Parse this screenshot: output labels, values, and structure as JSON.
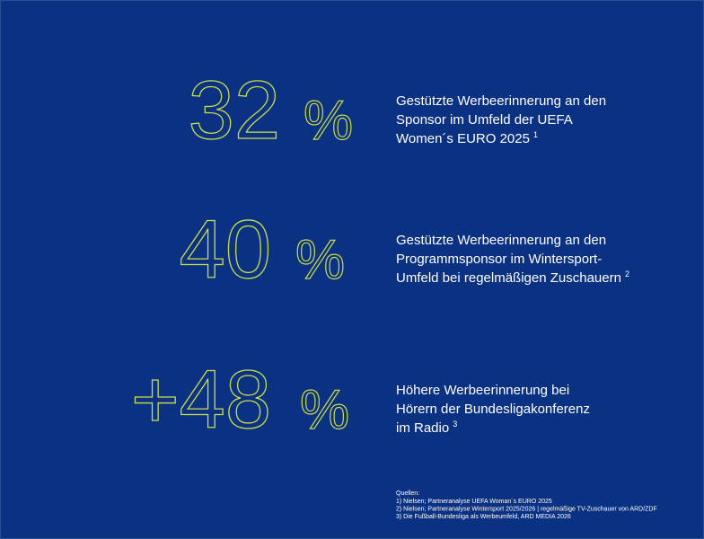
{
  "stats": [
    {
      "number": "32",
      "unit": "%",
      "lines": [
        "Gestützte Werbeerinnerung an den",
        "Sponsor im Umfeld der UEFA",
        "Women´s EURO 2025"
      ],
      "note": "1"
    },
    {
      "number": "40",
      "unit": "%",
      "lines": [
        "Gestützte Werbeerinnerung an den",
        "Programmsponsor im Wintersport-",
        "Umfeld bei regelmäßigen Zuschauern"
      ],
      "note": "2"
    },
    {
      "number": "+48",
      "unit": "%",
      "lines": [
        "Höhere Werbeerinnerung bei",
        "Hörern der Bundesligakonferenz",
        "im Radio"
      ],
      "note": "3"
    }
  ],
  "sources": {
    "title": "Quellen:",
    "items": [
      "1) Nielsen; Partneranalyse UEFA Woman´s EURO 2025",
      "2) Nielsen; Partneranalyse Wintersport 2025/2026 | regelmäßige TV-Zuschauer von ARD/ZDF",
      "3) Die Fußball-Bundesliga als Werbeumfeld, ARD MEDIA 2026"
    ]
  }
}
